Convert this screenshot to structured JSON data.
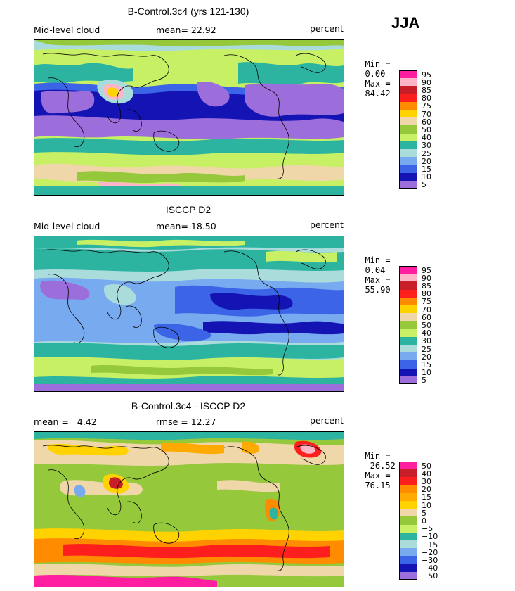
{
  "season": "JJA",
  "chart_data": [
    {
      "type": "heatmap",
      "title": "B-Control.3c4 (yrs 121-130)",
      "left_label": "Mid-level cloud",
      "stat_label": "mean=",
      "stat_value": "22.92",
      "unit": "percent",
      "min_label": "Min =",
      "min_value": "0.00",
      "max_label": "Max =",
      "max_value": "84.42",
      "colorbar": {
        "levels": [
          "95",
          "90",
          "85",
          "80",
          "75",
          "70",
          "60",
          "50",
          "40",
          "30",
          "25",
          "20",
          "15",
          "10",
          "5"
        ],
        "colors": [
          "#ff1ea0",
          "#ffb4c8",
          "#c81e28",
          "#ff1e1e",
          "#ff8c00",
          "#ffd200",
          "#f0d7aa",
          "#96c83c",
          "#c8f064",
          "#2db4a0",
          "#aadcdc",
          "#78aaf0",
          "#3c64e6",
          "#1414b4",
          "#9b6edc"
        ]
      }
    },
    {
      "type": "heatmap",
      "title": "ISCCP D2",
      "left_label": "Mid-level cloud",
      "stat_label": "mean=",
      "stat_value": "18.50",
      "unit": "percent",
      "min_label": "Min =",
      "min_value": "0.04",
      "max_label": "Max =",
      "max_value": "55.90",
      "colorbar": {
        "levels": [
          "95",
          "90",
          "85",
          "80",
          "75",
          "70",
          "60",
          "50",
          "40",
          "30",
          "25",
          "20",
          "15",
          "10",
          "5"
        ],
        "colors": [
          "#ff1ea0",
          "#ffb4c8",
          "#c81e28",
          "#ff1e1e",
          "#ff8c00",
          "#ffd200",
          "#f0d7aa",
          "#96c83c",
          "#c8f064",
          "#2db4a0",
          "#aadcdc",
          "#78aaf0",
          "#3c64e6",
          "#1414b4",
          "#9b6edc"
        ]
      }
    },
    {
      "type": "heatmap",
      "title": "B-Control.3c4 - ISCCP D2",
      "left_label": "mean =",
      "left_value": "4.42",
      "stat_label": "rmse =",
      "stat_value": "12.27",
      "unit": "percent",
      "min_label": "Min =",
      "min_value": "-26.52",
      "max_label": "Max =",
      "max_value": "76.15",
      "colorbar": {
        "levels": [
          "50",
          "40",
          "30",
          "20",
          "15",
          "10",
          "5",
          "0",
          "−5",
          "−10",
          "−15",
          "−20",
          "−30",
          "−40",
          "−50"
        ],
        "colors": [
          "#ff1ea0",
          "#c81e28",
          "#ff1e1e",
          "#ff8c00",
          "#ffaa00",
          "#ffd200",
          "#f0d7aa",
          "#96c83c",
          "#c8f064",
          "#2db4a0",
          "#aadcdc",
          "#78aaf0",
          "#3c64e6",
          "#1414b4",
          "#9b6edc"
        ]
      }
    }
  ]
}
